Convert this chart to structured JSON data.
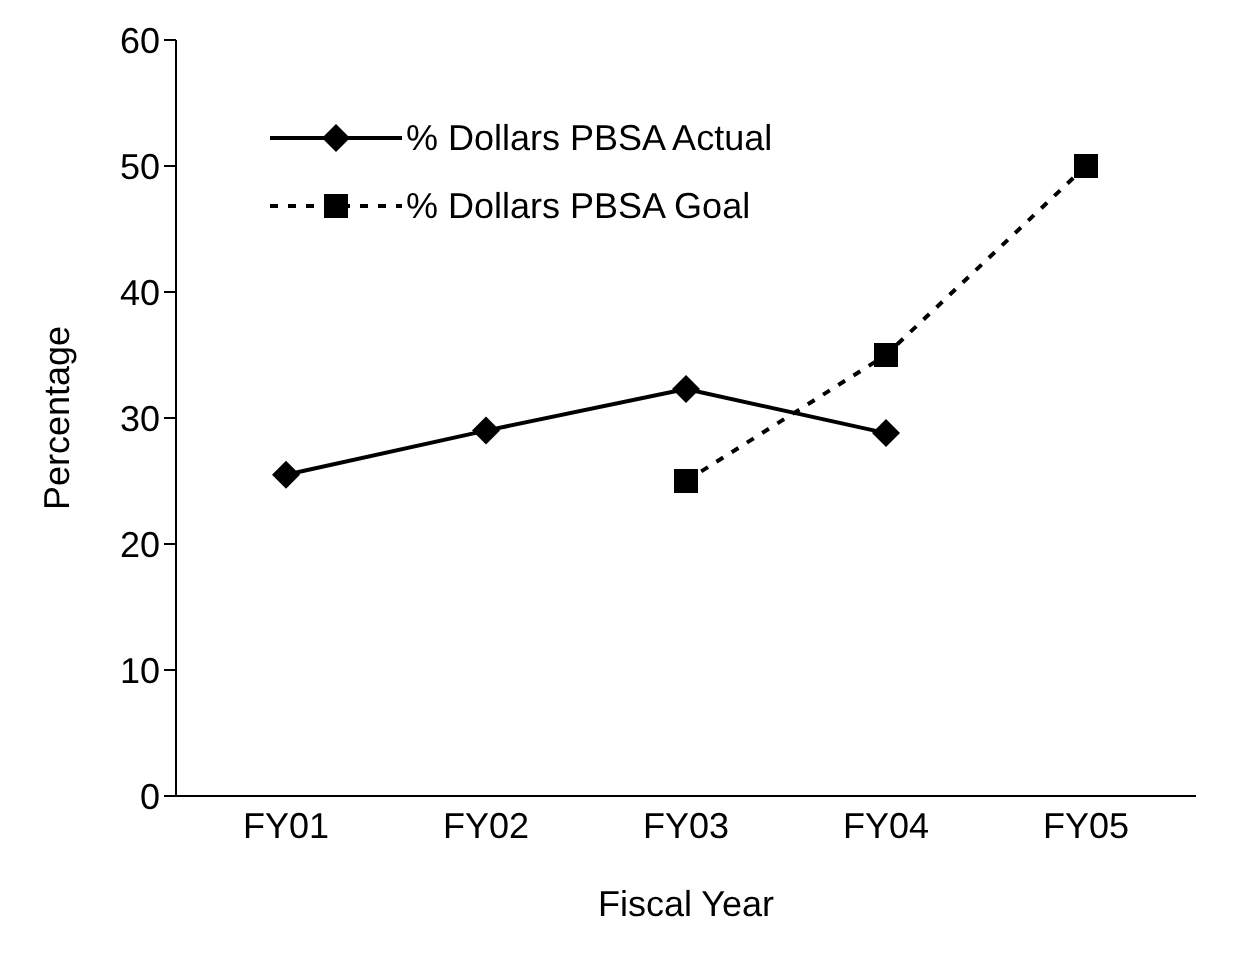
{
  "chart_data": {
    "type": "line",
    "xlabel": "Fiscal Year",
    "ylabel": "Percentage",
    "categories": [
      "FY01",
      "FY02",
      "FY03",
      "FY04",
      "FY05"
    ],
    "ylim": [
      0,
      60
    ],
    "yticks": [
      0,
      10,
      20,
      30,
      40,
      50,
      60
    ],
    "grid": false,
    "legend": "top left",
    "series": [
      {
        "name": "% Dollars PBSA Actual",
        "color": "#000000",
        "marker": "diamond",
        "line_style": "solid",
        "values": [
          25.5,
          29,
          32.3,
          28.8,
          null
        ]
      },
      {
        "name": "% Dollars PBSA Goal",
        "color": "#000000",
        "marker": "square",
        "line_style": "dotted",
        "values": [
          null,
          null,
          25,
          35,
          50
        ]
      }
    ]
  }
}
